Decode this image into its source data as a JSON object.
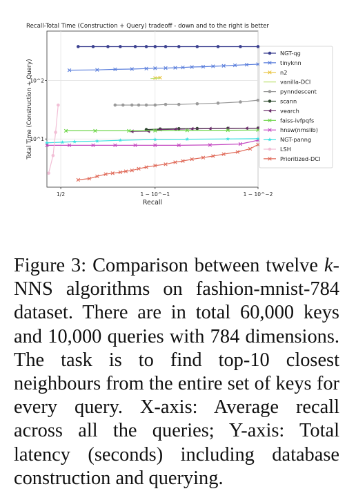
{
  "chart_data": {
    "type": "line",
    "title": "Recall-Total Time (Construction + Query) tradeoff - down and to the right is better",
    "xlabel": "Recall",
    "ylabel": "Total Time (Construction + Query)",
    "x_scale": "logit",
    "y_scale": "log",
    "xlim": [
      0.42,
      0.99
    ],
    "ylim": [
      1.5,
      700
    ],
    "x_ticks": [
      {
        "value": 0.5,
        "label": "1/2"
      },
      {
        "value": 0.9,
        "label": "1 − 10^−1"
      },
      {
        "value": 0.99,
        "label": "1 − 10^−2"
      }
    ],
    "y_ticks": [
      {
        "value": 10,
        "label": "10^1"
      },
      {
        "value": 100,
        "label": "10^2"
      }
    ],
    "grid": true,
    "legend_position": "outside-right",
    "series": [
      {
        "name": "NGT-qg",
        "color": "#3a3f8f",
        "marker": "o",
        "x": [
          0.6,
          0.68,
          0.75,
          0.8,
          0.85,
          0.88,
          0.9,
          0.92,
          0.94,
          0.96,
          0.975,
          0.985,
          0.99
        ],
        "y": [
          380,
          380,
          380,
          380,
          380,
          380,
          380,
          380,
          380,
          380,
          380,
          380,
          380
        ]
      },
      {
        "name": "tinyknn",
        "color": "#5b7fdc",
        "marker": "x",
        "x": [
          0.55,
          0.7,
          0.78,
          0.84,
          0.88,
          0.9,
          0.92,
          0.935,
          0.945,
          0.955,
          0.965,
          0.972,
          0.978,
          0.983,
          0.987,
          0.99
        ],
        "y": [
          150,
          152,
          155,
          157,
          160,
          162,
          163,
          165,
          167,
          170,
          172,
          175,
          178,
          182,
          186,
          190
        ]
      },
      {
        "name": "n2",
        "color": "#e8c23a",
        "marker": "x",
        "x": [
          0.9,
          0.91
        ],
        "y": [
          110,
          112
        ]
      },
      {
        "name": "vanilla-DCI",
        "color": "#b9e06a",
        "marker": "none",
        "x": [
          0.89,
          0.91
        ],
        "y": [
          108,
          110
        ]
      },
      {
        "name": "pynndescent",
        "color": "#9a9a9a",
        "marker": "o",
        "x": [
          0.78,
          0.81,
          0.84,
          0.86,
          0.88,
          0.9,
          0.92,
          0.94,
          0.96,
          0.975,
          0.985,
          0.99
        ],
        "y": [
          38,
          38,
          38,
          38,
          38,
          38,
          39,
          39,
          40,
          41,
          43,
          46
        ]
      },
      {
        "name": "scann",
        "color": "#2f4a2f",
        "marker": "o",
        "x": [
          0.88,
          0.91,
          0.94,
          0.96,
          0.98,
          0.99
        ],
        "y": [
          14.5,
          14.8,
          15,
          15.1,
          15.2,
          15.3
        ]
      },
      {
        "name": "vearch",
        "color": "#6b2f6b",
        "marker": "<",
        "x": [
          0.84,
          0.885,
          0.91,
          0.935,
          0.955,
          0.97,
          0.98,
          0.987,
          0.99
        ],
        "y": [
          13.5,
          13.6,
          14.5,
          14.7,
          14.9,
          15,
          15.1,
          15.2,
          15.3
        ]
      },
      {
        "name": "faiss-ivfpqfs",
        "color": "#6fd64a",
        "marker": "x",
        "x": [
          0.53,
          0.69,
          0.83,
          0.9,
          0.95,
          0.98,
          0.99
        ],
        "y": [
          13.8,
          13.8,
          13.8,
          13.9,
          14,
          14.1,
          14.2
        ]
      },
      {
        "name": "hnsw(nmslib)",
        "color": "#c347c0",
        "marker": "x",
        "x": [
          0.42,
          0.55,
          0.68,
          0.78,
          0.85,
          0.9,
          0.94,
          0.97,
          0.985,
          0.99
        ],
        "y": [
          7.8,
          7.8,
          7.8,
          7.8,
          7.8,
          7.8,
          7.8,
          7.9,
          8.2,
          9.5
        ]
      },
      {
        "name": "NGT-panng",
        "color": "#3fe0e0",
        "marker": "*",
        "x": [
          0.42,
          0.51,
          0.58,
          0.7,
          0.8,
          0.9,
          0.95,
          0.98,
          0.99
        ],
        "y": [
          8.6,
          8.8,
          9,
          9.2,
          9.5,
          9.8,
          9.9,
          10,
          10.1
        ]
      },
      {
        "name": "LSH",
        "color": "#f2bfd6",
        "marker": "o",
        "x": [
          0.43,
          0.455,
          0.47,
          0.485
        ],
        "y": [
          2.6,
          5.2,
          13,
          38
        ]
      },
      {
        "name": "Prioritized-DCI",
        "color": "#e06b5a",
        "marker": "x",
        "x": [
          0.6,
          0.66,
          0.7,
          0.74,
          0.77,
          0.8,
          0.82,
          0.84,
          0.86,
          0.88,
          0.9,
          0.92,
          0.935,
          0.945,
          0.955,
          0.965,
          0.972,
          0.978,
          0.984,
          0.988,
          0.99
        ],
        "y": [
          2,
          2.1,
          2.3,
          2.5,
          2.6,
          2.7,
          2.8,
          2.9,
          3.1,
          3.3,
          3.5,
          3.7,
          4,
          4.2,
          4.5,
          4.8,
          5.1,
          5.5,
          6,
          6.8,
          8
        ]
      }
    ]
  },
  "caption": {
    "fig_label": "Figure 3:",
    "text_1": " Comparison between twelve ",
    "k": "k",
    "text_2": "-NNS algorithms on fashion-mnist-784 dataset. There are in total 60,000 keys and 10,000 queries with 784 dimensions. The task is to find top-10 closest neighbours from the entire set of keys for every query. X-axis: Average recall across all the queries; Y-axis: Total latency (seconds) including database construction and querying."
  }
}
